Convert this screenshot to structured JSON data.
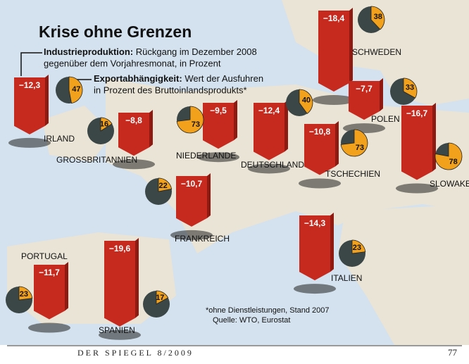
{
  "chart_data": {
    "type": "map-bar",
    "title": "Krise ohne Grenzen",
    "categories": [
      "IRLAND",
      "GROSSBRITANNIEN",
      "NIEDERLANDE",
      "DEUTSCHLAND",
      "SCHWEDEN",
      "POLEN",
      "TSCHECHIEN",
      "SLOWAKEI",
      "FRANKREICH",
      "ITALIEN",
      "PORTUGAL",
      "SPANIEN"
    ],
    "series": [
      {
        "name": "Industrieproduktion:",
        "description": [
          "Rückgang im Dezember 2008",
          "gegenüber dem Vorjahresmonat, in Prozent"
        ],
        "color": "#c62a1f",
        "values": [
          -12.3,
          -8.8,
          -9.5,
          -12.4,
          -18.4,
          -7.7,
          -10.8,
          -16.7,
          -10.7,
          -14.3,
          -11.7,
          -19.6
        ],
        "value_labels": [
          "−12,3",
          "−8,8",
          "−9,5",
          "−12,4",
          "−18,4",
          "−7,7",
          "−10,8",
          "−16,7",
          "−10,7",
          "−14,3",
          "−11,7",
          "−19,6"
        ]
      },
      {
        "name": "Exportabhängigkeit:",
        "description": [
          "Wert der Ausfuhren",
          "in Prozent des Bruttoinlandsprodukts*"
        ],
        "color": "#f2a11c",
        "values": [
          47,
          16,
          73,
          40,
          38,
          33,
          73,
          78,
          22,
          23,
          23,
          17
        ]
      }
    ],
    "footnote": [
      "*ohne Dienstleistungen, Stand 2007",
      "Quelle: WTO, Eurostat"
    ],
    "footer": "DER SPIEGEL 8/2009",
    "page_number": "77"
  }
}
